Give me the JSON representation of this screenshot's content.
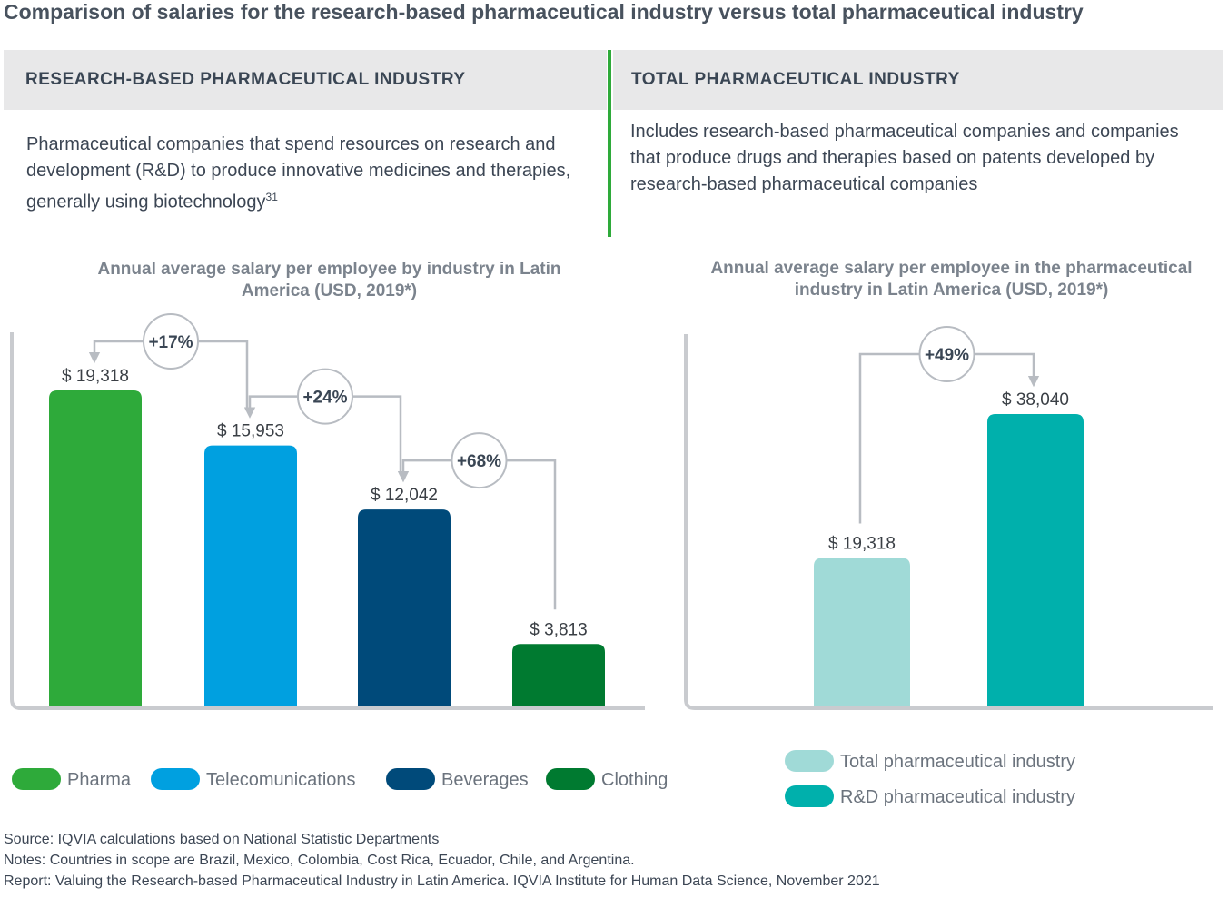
{
  "title": "Comparison of salaries for the research-based pharmaceutical industry versus total pharmaceutical industry",
  "panels": [
    {
      "heading": "RESEARCH-BASED PHARMACEUTICAL INDUSTRY",
      "description": "Pharmaceutical companies that spend resources on research and development (R&D) to produce innovative medicines and therapies, generally using biotechnology",
      "footnote_ref": "31"
    },
    {
      "heading": "TOTAL PHARMACEUTICAL INDUSTRY",
      "description": "Includes research-based pharmaceutical companies and companies that produce drugs and therapies based on patents developed by research-based pharmaceutical companies"
    }
  ],
  "chart_data": [
    {
      "type": "bar",
      "title": "Annual average salary per employee by industry in Latin America (USD, 2019*)",
      "categories": [
        "Pharma",
        "Telecomunications",
        "Beverages",
        "Clothing"
      ],
      "values": [
        19318,
        15953,
        12042,
        3813
      ],
      "value_labels": [
        "$ 19,318",
        "$ 15,953",
        "$ 12,042",
        "$ 3,813"
      ],
      "colors": [
        "#2eaa3a",
        "#00a0e0",
        "#004a7a",
        "#007a30"
      ],
      "annotations": [
        "+17%",
        "+24%",
        "+68%"
      ]
    },
    {
      "type": "bar",
      "title": "Annual average salary per employee in the pharmaceutical industry in Latin America (USD, 2019*)",
      "categories": [
        "Total pharmaceutical industry",
        "R&D pharmaceutical industry"
      ],
      "values": [
        19318,
        38040
      ],
      "value_labels": [
        "$ 19,318",
        "$ 38,040"
      ],
      "colors": [
        "#a0dad7",
        "#00b0ac"
      ],
      "annotations": [
        "+49%"
      ]
    }
  ],
  "notes": [
    "Source: IQVIA calculations based on National Statistic Departments",
    "Notes: Countries in scope are Brazil, Mexico, Colombia, Cost Rica, Ecuador, Chile, and Argentina.",
    "Report: Valuing the Research-based Pharmaceutical Industry in Latin America. IQVIA Institute for Human Data Science, November 2021"
  ]
}
